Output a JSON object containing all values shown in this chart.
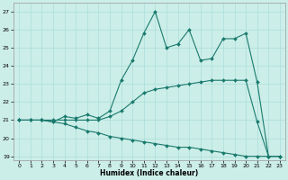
{
  "xlabel": "Humidex (Indice chaleur)",
  "bg_color": "#cceee8",
  "line_color": "#1a7a6e",
  "grid_color": "#aaddda",
  "xlim": [
    -0.5,
    23.5
  ],
  "ylim": [
    18.8,
    27.5
  ],
  "yticks": [
    19,
    20,
    21,
    22,
    23,
    24,
    25,
    26,
    27
  ],
  "xticks": [
    0,
    1,
    2,
    3,
    4,
    5,
    6,
    7,
    8,
    9,
    10,
    11,
    12,
    13,
    14,
    15,
    16,
    17,
    18,
    19,
    20,
    21,
    22,
    23
  ],
  "series": [
    {
      "x": [
        0,
        1,
        2,
        3,
        4,
        5,
        6,
        7,
        8,
        9,
        10,
        11,
        12,
        13,
        14,
        15,
        16,
        17,
        18,
        19,
        20,
        21,
        22,
        23
      ],
      "y": [
        21.0,
        21.0,
        21.0,
        20.9,
        20.8,
        20.6,
        20.4,
        20.3,
        20.1,
        20.0,
        19.9,
        19.8,
        19.7,
        19.6,
        19.5,
        19.5,
        19.4,
        19.3,
        19.2,
        19.1,
        19.0,
        19.0,
        19.0,
        19.0
      ]
    },
    {
      "x": [
        0,
        1,
        2,
        3,
        4,
        5,
        6,
        7,
        8,
        9,
        10,
        11,
        12,
        13,
        14,
        15,
        16,
        17,
        18,
        19,
        20,
        21,
        22,
        23
      ],
      "y": [
        21.0,
        21.0,
        21.0,
        21.0,
        21.0,
        21.0,
        21.0,
        21.0,
        21.2,
        21.5,
        22.0,
        22.5,
        22.7,
        22.8,
        22.9,
        23.0,
        23.1,
        23.2,
        23.2,
        23.2,
        23.2,
        20.9,
        19.0,
        19.0
      ]
    },
    {
      "x": [
        0,
        2,
        3,
        4,
        5,
        6,
        7,
        8,
        9,
        10,
        11,
        12,
        13,
        14,
        15,
        16,
        17,
        18,
        19,
        20,
        21,
        22,
        23
      ],
      "y": [
        21.0,
        21.0,
        20.9,
        21.2,
        21.1,
        21.3,
        21.1,
        21.5,
        23.2,
        24.3,
        25.8,
        27.0,
        25.0,
        25.2,
        26.0,
        24.3,
        24.4,
        25.5,
        25.5,
        25.8,
        23.1,
        19.0,
        19.0
      ]
    }
  ]
}
